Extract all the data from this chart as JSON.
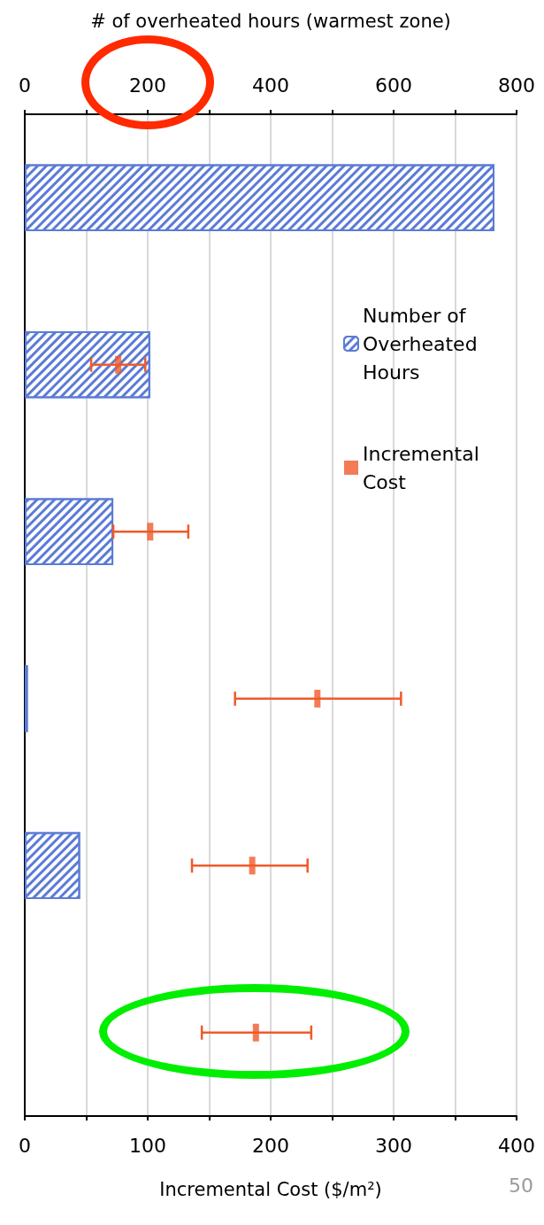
{
  "chart_data": {
    "type": "bar",
    "orientation": "horizontal",
    "x2label": "# of overheated hours (warmest zone)",
    "xlabel": "Incremental Cost ($/m²)",
    "categories": [
      null,
      null,
      null,
      null,
      null,
      null
    ],
    "series": [
      {
        "name": "Number of Overheated Hours",
        "type": "bar",
        "axis": "x2",
        "color": "#5b7bd5",
        "values": [
          764,
          204,
          144,
          5,
          90,
          null
        ]
      },
      {
        "name": "Incremental Cost",
        "type": "scatter",
        "color": "#f05a2a",
        "marker": "square",
        "values": [
          null,
          76,
          102,
          238,
          185,
          188
        ],
        "errors": [
          null,
          [
            54,
            98
          ],
          [
            72,
            133
          ],
          [
            171,
            306
          ],
          [
            136,
            230
          ],
          [
            144,
            233
          ]
        ]
      }
    ],
    "xlim": [
      0,
      400
    ],
    "xticks": [
      0,
      {
        "value": 50,
        "label": null
      },
      100,
      {
        "value": 150,
        "label": null
      },
      200,
      {
        "value": 250,
        "label": null
      },
      300,
      {
        "value": 350,
        "label": null
      },
      400
    ],
    "x2lim": [
      0,
      800
    ],
    "x2ticks": [
      0,
      {
        "value": 100,
        "label": null
      },
      200,
      {
        "value": 300,
        "label": null
      },
      400,
      {
        "value": 500,
        "label": null
      },
      600,
      {
        "value": 700,
        "label": null
      },
      800
    ],
    "grid": "x",
    "legend": "right",
    "annotations": [
      "50"
    ]
  }
}
